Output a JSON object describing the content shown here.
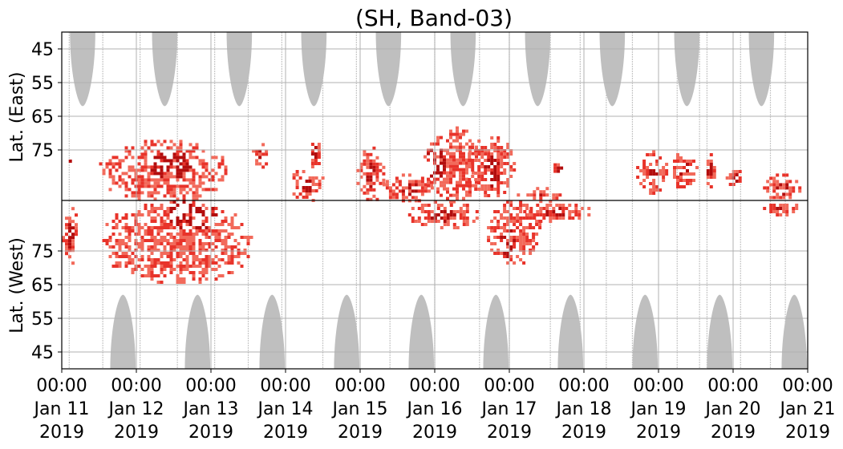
{
  "chart_data": {
    "type": "heatmap",
    "title": "(SH, Band-03)",
    "ylabel_top": "Lat. (East)",
    "ylabel_bottom": "Lat. (West)",
    "xlabel": "",
    "x_range": [
      "2019-01-11 00:00",
      "2019-01-21 00:00"
    ],
    "x_ticks": [
      {
        "time": "00:00",
        "date": "Jan 11",
        "year": "2019"
      },
      {
        "time": "00:00",
        "date": "Jan 12",
        "year": "2019"
      },
      {
        "time": "00:00",
        "date": "Jan 13",
        "year": "2019"
      },
      {
        "time": "00:00",
        "date": "Jan 14",
        "year": "2019"
      },
      {
        "time": "00:00",
        "date": "Jan 15",
        "year": "2019"
      },
      {
        "time": "00:00",
        "date": "Jan 16",
        "year": "2019"
      },
      {
        "time": "00:00",
        "date": "Jan 17",
        "year": "2019"
      },
      {
        "time": "00:00",
        "date": "Jan 18",
        "year": "2019"
      },
      {
        "time": "00:00",
        "date": "Jan 19",
        "year": "2019"
      },
      {
        "time": "00:00",
        "date": "Jan 20",
        "year": "2019"
      },
      {
        "time": "00:00",
        "date": "Jan 21",
        "year": "2019"
      }
    ],
    "y_axis_east": {
      "ticks": [
        "45",
        "55",
        "65",
        "75"
      ],
      "range": [
        40,
        90
      ]
    },
    "y_axis_west": {
      "ticks": [
        "75",
        "65",
        "55",
        "45"
      ],
      "range": [
        90,
        40
      ]
    },
    "grid": true,
    "colors": {
      "sun_shadow": "#bfbfbf",
      "gap_lines": "#c8c8c8",
      "activity_light": "#f26a5b",
      "activity_mid": "#e8332a",
      "activity_dark": "#b30d0d",
      "divider": "#000000"
    },
    "shaded_regions": {
      "description_key": "gray daylight/no-data lobes",
      "east_centers_day": [
        0.28,
        1.38,
        2.38,
        3.38,
        4.38,
        5.38,
        6.38,
        7.38,
        8.38,
        9.38
      ],
      "east_min_lat": 62,
      "west_centers_day": [
        0.82,
        1.82,
        2.82,
        3.82,
        4.82,
        5.82,
        6.82,
        7.82,
        8.82,
        9.82
      ],
      "west_min_lat": 62
    },
    "activity_clusters": [
      {
        "hemisphere": "East",
        "day_start": 0.05,
        "day_end": 0.12,
        "lat_min": 75,
        "lat_max": 81
      },
      {
        "hemisphere": "West",
        "day_start": 0.0,
        "day_end": 0.2,
        "lat_min": 71,
        "lat_max": 89
      },
      {
        "hemisphere": "East",
        "day_start": 0.5,
        "day_end": 2.2,
        "lat_min": 72,
        "lat_max": 90,
        "peak_day": 1.45,
        "peak_lat": 79
      },
      {
        "hemisphere": "West",
        "day_start": 0.5,
        "day_end": 2.55,
        "lat_min": 66,
        "lat_max": 90,
        "peak_day": 1.75,
        "peak_lat": 87
      },
      {
        "hemisphere": "East",
        "day_start": 2.55,
        "day_end": 2.75,
        "lat_min": 72,
        "lat_max": 80
      },
      {
        "hemisphere": "East",
        "day_start": 3.05,
        "day_end": 3.5,
        "lat_min": 80,
        "lat_max": 90
      },
      {
        "hemisphere": "East",
        "day_start": 3.3,
        "day_end": 3.45,
        "lat_min": 70,
        "lat_max": 80
      },
      {
        "hemisphere": "East",
        "day_start": 3.95,
        "day_end": 4.3,
        "lat_min": 74,
        "lat_max": 90
      },
      {
        "hemisphere": "East",
        "day_start": 4.3,
        "day_end": 5.0,
        "lat_min": 82,
        "lat_max": 90
      },
      {
        "hemisphere": "West",
        "day_start": 4.6,
        "day_end": 5.6,
        "lat_min": 82,
        "lat_max": 90
      },
      {
        "hemisphere": "East",
        "day_start": 4.85,
        "day_end": 5.6,
        "lat_min": 68,
        "lat_max": 90,
        "peak_day": 5.0,
        "peak_lat": 78
      },
      {
        "hemisphere": "East",
        "day_start": 5.4,
        "day_end": 6.05,
        "lat_min": 70,
        "lat_max": 90,
        "peak_day": 5.75,
        "peak_lat": 81
      },
      {
        "hemisphere": "West",
        "day_start": 5.7,
        "day_end": 6.4,
        "lat_min": 71,
        "lat_max": 90,
        "peak_day": 5.95,
        "peak_lat": 78
      },
      {
        "hemisphere": "East",
        "day_start": 6.1,
        "day_end": 6.7,
        "lat_min": 86,
        "lat_max": 90
      },
      {
        "hemisphere": "West",
        "day_start": 6.1,
        "day_end": 7.1,
        "lat_min": 84,
        "lat_max": 90
      },
      {
        "hemisphere": "East",
        "day_start": 6.55,
        "day_end": 6.75,
        "lat_min": 78,
        "lat_max": 82
      },
      {
        "hemisphere": "East",
        "day_start": 7.7,
        "day_end": 8.1,
        "lat_min": 75,
        "lat_max": 88
      },
      {
        "hemisphere": "East",
        "day_start": 8.15,
        "day_end": 8.5,
        "lat_min": 75,
        "lat_max": 86
      },
      {
        "hemisphere": "East",
        "day_start": 8.6,
        "day_end": 8.75,
        "lat_min": 75,
        "lat_max": 86
      },
      {
        "hemisphere": "East",
        "day_start": 8.9,
        "day_end": 9.15,
        "lat_min": 80,
        "lat_max": 86
      },
      {
        "hemisphere": "East",
        "day_start": 9.4,
        "day_end": 9.9,
        "lat_min": 82,
        "lat_max": 90
      },
      {
        "hemisphere": "West",
        "day_start": 9.4,
        "day_end": 9.9,
        "lat_min": 86,
        "lat_max": 90
      }
    ]
  }
}
